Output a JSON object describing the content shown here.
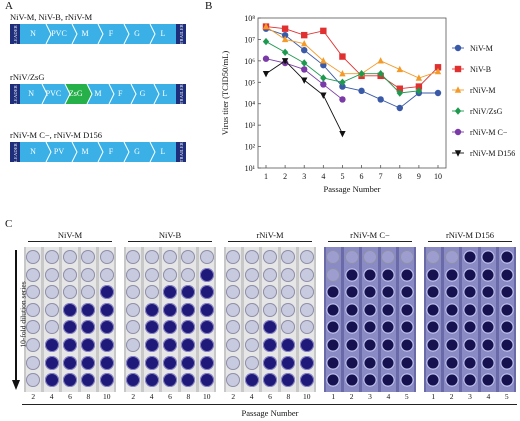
{
  "panels": {
    "a": "A",
    "b": "B",
    "c": "C"
  },
  "genomes": [
    {
      "title": "NiV-M, NiV-B, rNiV-M",
      "segments": [
        "N",
        "PVC",
        "M",
        "F",
        "G",
        "L"
      ],
      "gfp": false
    },
    {
      "title": "rNiV/ZsG",
      "segments": [
        "N",
        "PVC",
        "ZsG",
        "M",
        "F",
        "G",
        "L"
      ],
      "gfp": true
    },
    {
      "title": "rNiV-M C−, rNiV-M D156",
      "segments": [
        "N",
        "PV",
        "M",
        "F",
        "G",
        "L"
      ],
      "gfp": false
    }
  ],
  "genome_ends": {
    "leader": "LEADER",
    "trailer": "TRAILER"
  },
  "colors": {
    "genome_fill": "#3ab0e6",
    "genome_end": "#1e2e7a",
    "gfp": "#25b04a",
    "well_dark": "#1f1a7a",
    "well_light": "#c8cbe0"
  },
  "chart_data": {
    "type": "line",
    "xlabel": "Passage Number",
    "ylabel": "Virus titer (TCID50/mL)",
    "x": [
      1,
      2,
      3,
      4,
      5,
      6,
      7,
      8,
      9,
      10
    ],
    "ylim_log10": [
      1,
      8
    ],
    "ytick_labels": [
      "10¹",
      "10²",
      "10³",
      "10⁴",
      "10⁵",
      "10⁶",
      "10⁷",
      "10⁸"
    ],
    "series": [
      {
        "name": "NiV-M",
        "color": "#3a5aa8",
        "marker": "circle",
        "log10": [
          7.5,
          7.2,
          6.5,
          5.8,
          4.8,
          4.6,
          4.2,
          3.8,
          4.5,
          4.5
        ]
      },
      {
        "name": "NiV-B",
        "color": "#e03030",
        "marker": "square",
        "log10": [
          7.6,
          7.5,
          7.2,
          7.4,
          6.2,
          5.3,
          5.3,
          4.7,
          4.8,
          5.7
        ]
      },
      {
        "name": "rNiV-M",
        "color": "#f39b2a",
        "marker": "triangle",
        "log10": [
          7.6,
          7.0,
          6.8,
          6.0,
          5.4,
          5.4,
          6.0,
          5.6,
          5.2,
          5.5
        ]
      },
      {
        "name": "rNiV/ZsG",
        "color": "#1e9a50",
        "marker": "diamond",
        "log10": [
          6.9,
          6.4,
          5.9,
          5.2,
          5.0,
          5.4,
          5.4,
          4.5,
          4.6
        ]
      },
      {
        "name": "rNiV-M C−",
        "color": "#7a3aa8",
        "marker": "circle",
        "log10": [
          6.1,
          5.9,
          5.6,
          4.9,
          4.2
        ]
      },
      {
        "name": "rNiV-M D156",
        "color": "#111111",
        "marker": "triangle-down",
        "log10": [
          5.4,
          6.0,
          5.1,
          4.4,
          2.6
        ]
      }
    ]
  },
  "plates": {
    "groups": [
      {
        "label": "NiV-M",
        "passages": [
          "2",
          "4",
          "6",
          "8",
          "10"
        ],
        "dark_from": [
          9,
          5,
          3,
          3,
          2
        ],
        "purple": false
      },
      {
        "label": "NiV-B",
        "passages": [
          "2",
          "4",
          "6",
          "8",
          "10"
        ],
        "dark_from": [
          6,
          3,
          2,
          2,
          1
        ],
        "purple": false
      },
      {
        "label": "rNiV-M",
        "passages": [
          "2",
          "4",
          "6",
          "8",
          "10"
        ],
        "dark_from": [
          8,
          7,
          4,
          5,
          5
        ],
        "purple": false
      },
      {
        "label": "rNiV-M C−",
        "passages": [
          "1",
          "2",
          "3",
          "4",
          "5"
        ],
        "dark_from": [
          2,
          1,
          1,
          1,
          1
        ],
        "purple": true
      },
      {
        "label": "rNiV-M D156",
        "passages": [
          "1",
          "2",
          "3",
          "4",
          "5"
        ],
        "dark_from": [
          1,
          1,
          0,
          0,
          0
        ],
        "purple": true
      }
    ],
    "rows": 8,
    "dilution_label": "10-fold dilution series",
    "xlabel": "Passage Number"
  }
}
